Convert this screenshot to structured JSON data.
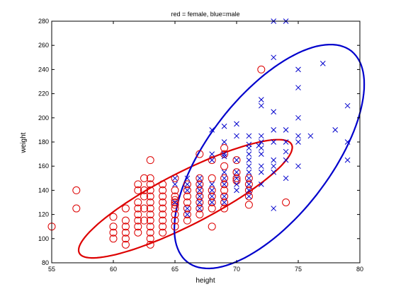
{
  "chart_data": {
    "type": "scatter",
    "title": "red = female, blue=male",
    "xlabel": "height",
    "ylabel": "weight",
    "xlim": [
      55,
      80
    ],
    "ylim": [
      80,
      280
    ],
    "xticks": [
      55,
      60,
      65,
      70,
      75,
      80
    ],
    "yticks": [
      80,
      100,
      120,
      140,
      160,
      180,
      200,
      220,
      240,
      260,
      280
    ],
    "grid": false,
    "series": [
      {
        "name": "female",
        "marker": "circle",
        "color": "#dd0000",
        "points": [
          [
            55,
            110
          ],
          [
            57,
            140
          ],
          [
            57,
            125
          ],
          [
            60,
            118
          ],
          [
            60,
            110
          ],
          [
            60,
            105
          ],
          [
            60,
            100
          ],
          [
            61,
            125
          ],
          [
            61,
            115
          ],
          [
            61,
            110
          ],
          [
            61,
            105
          ],
          [
            61,
            100
          ],
          [
            61,
            95
          ],
          [
            62,
            145
          ],
          [
            62,
            140
          ],
          [
            62,
            130
          ],
          [
            62,
            125
          ],
          [
            62,
            120
          ],
          [
            62,
            115
          ],
          [
            62,
            110
          ],
          [
            62,
            105
          ],
          [
            62.5,
            150
          ],
          [
            62.5,
            140
          ],
          [
            62.5,
            135
          ],
          [
            62.5,
            125
          ],
          [
            62.5,
            115
          ],
          [
            63,
            165
          ],
          [
            63,
            150
          ],
          [
            63,
            145
          ],
          [
            63,
            140
          ],
          [
            63,
            135
          ],
          [
            63,
            130
          ],
          [
            63,
            125
          ],
          [
            63,
            120
          ],
          [
            63,
            115
          ],
          [
            63,
            110
          ],
          [
            63,
            105
          ],
          [
            63,
            100
          ],
          [
            63,
            95
          ],
          [
            64,
            145
          ],
          [
            64,
            140
          ],
          [
            64,
            135
          ],
          [
            64,
            130
          ],
          [
            64,
            125
          ],
          [
            64,
            120
          ],
          [
            64,
            115
          ],
          [
            64,
            110
          ],
          [
            64,
            105
          ],
          [
            65,
            150
          ],
          [
            65,
            140
          ],
          [
            65,
            135
          ],
          [
            65,
            132
          ],
          [
            65,
            130
          ],
          [
            65,
            128
          ],
          [
            65,
            125
          ],
          [
            65,
            120
          ],
          [
            65,
            115
          ],
          [
            65,
            110
          ],
          [
            66,
            145
          ],
          [
            66,
            140
          ],
          [
            66,
            135
          ],
          [
            66,
            130
          ],
          [
            66,
            125
          ],
          [
            66,
            120
          ],
          [
            66,
            115
          ],
          [
            67,
            170
          ],
          [
            67,
            150
          ],
          [
            67,
            145
          ],
          [
            67,
            140
          ],
          [
            67,
            135
          ],
          [
            67,
            130
          ],
          [
            67,
            125
          ],
          [
            67,
            120
          ],
          [
            68,
            165
          ],
          [
            68,
            150
          ],
          [
            68,
            140
          ],
          [
            68,
            135
          ],
          [
            68,
            130
          ],
          [
            68,
            125
          ],
          [
            68,
            110
          ],
          [
            69,
            175
          ],
          [
            69,
            170
          ],
          [
            69,
            160
          ],
          [
            69,
            150
          ],
          [
            69,
            145
          ],
          [
            69,
            140
          ],
          [
            69,
            135
          ],
          [
            69,
            130
          ],
          [
            69,
            125
          ],
          [
            70,
            165
          ],
          [
            70,
            155
          ],
          [
            70,
            150
          ],
          [
            70,
            148
          ],
          [
            71,
            150
          ],
          [
            71,
            145
          ],
          [
            71,
            140
          ],
          [
            71,
            135
          ],
          [
            71,
            128
          ],
          [
            72,
            240
          ],
          [
            74,
            130
          ]
        ]
      },
      {
        "name": "male",
        "marker": "x",
        "color": "#0000cc",
        "points": [
          [
            65,
            150
          ],
          [
            65,
            145
          ],
          [
            65,
            130
          ],
          [
            66,
            150
          ],
          [
            66,
            145
          ],
          [
            66,
            140
          ],
          [
            66,
            125
          ],
          [
            66,
            120
          ],
          [
            67,
            150
          ],
          [
            67,
            145
          ],
          [
            67,
            140
          ],
          [
            67,
            135
          ],
          [
            67,
            130
          ],
          [
            67,
            125
          ],
          [
            68,
            190
          ],
          [
            68,
            170
          ],
          [
            68,
            165
          ],
          [
            68,
            145
          ],
          [
            68,
            140
          ],
          [
            68,
            135
          ],
          [
            68,
            130
          ],
          [
            69,
            193
          ],
          [
            69,
            180
          ],
          [
            69,
            170
          ],
          [
            69,
            168
          ],
          [
            69,
            155
          ],
          [
            69,
            150
          ],
          [
            69,
            145
          ],
          [
            69,
            135
          ],
          [
            69,
            130
          ],
          [
            70,
            195
          ],
          [
            70,
            185
          ],
          [
            70,
            165
          ],
          [
            70,
            155
          ],
          [
            70,
            150
          ],
          [
            70,
            145
          ],
          [
            70,
            140
          ],
          [
            71,
            185
          ],
          [
            71,
            178
          ],
          [
            71,
            175
          ],
          [
            71,
            170
          ],
          [
            71,
            165
          ],
          [
            71,
            160
          ],
          [
            71,
            155
          ],
          [
            71,
            150
          ],
          [
            71,
            145
          ],
          [
            71,
            140
          ],
          [
            71,
            135
          ],
          [
            71.8,
            177
          ],
          [
            72,
            215
          ],
          [
            72,
            210
          ],
          [
            72,
            185
          ],
          [
            72,
            180
          ],
          [
            72,
            175
          ],
          [
            72,
            170
          ],
          [
            72,
            160
          ],
          [
            72,
            155
          ],
          [
            72,
            145
          ],
          [
            73,
            280
          ],
          [
            73,
            250
          ],
          [
            73,
            205
          ],
          [
            73,
            190
          ],
          [
            73,
            180
          ],
          [
            73,
            165
          ],
          [
            73,
            160
          ],
          [
            73,
            155
          ],
          [
            73,
            125
          ],
          [
            74,
            280
          ],
          [
            74,
            190
          ],
          [
            74,
            180
          ],
          [
            74,
            172
          ],
          [
            74,
            165
          ],
          [
            74,
            150
          ],
          [
            75,
            240
          ],
          [
            75,
            225
          ],
          [
            75,
            200
          ],
          [
            75,
            185
          ],
          [
            75,
            180
          ],
          [
            75,
            160
          ],
          [
            76,
            185
          ],
          [
            77,
            245
          ],
          [
            78,
            190
          ],
          [
            79,
            210
          ],
          [
            79,
            180
          ],
          [
            79,
            165
          ]
        ]
      }
    ],
    "ellipses": [
      {
        "series": "female",
        "color": "#dd0000",
        "center": [
          65.85,
          133
        ],
        "semi_axes": [
          9.6,
          26
        ],
        "rotation_deg": 25.5
      },
      {
        "series": "male",
        "color": "#0000cc",
        "center": [
          72.65,
          168
        ],
        "semi_axes": [
          10,
          83.8
        ],
        "rotation_deg": 40
      }
    ]
  }
}
